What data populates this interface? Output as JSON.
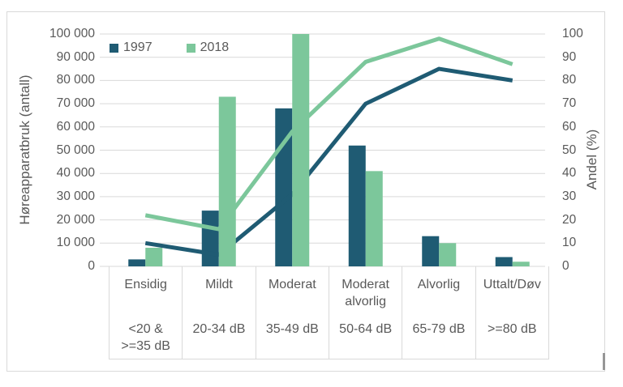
{
  "chart_data": {
    "type": "combo-bar-line",
    "title": "",
    "legend_position": "top-left-inside",
    "grid": true,
    "grid_color": "#d9d9d9",
    "text_color": "#595959",
    "left_axis": {
      "label": "Høreapparatbruk (antall)",
      "min": 0,
      "max": 100000,
      "tick_labels": [
        "100 000",
        "90 000",
        "80 000",
        "70 000",
        "60 000",
        "50 000",
        "40 000",
        "30 000",
        "20 000",
        "10 000",
        "0"
      ]
    },
    "right_axis": {
      "label": "Andel (%)",
      "min": 0,
      "max": 100,
      "tick_labels": [
        "100",
        "90",
        "80",
        "70",
        "60",
        "50",
        "40",
        "30",
        "20",
        "10",
        "0"
      ]
    },
    "categories": [
      {
        "name": "Ensidig",
        "range_lines": [
          "<20 &",
          ">=35 dB"
        ]
      },
      {
        "name": "Mildt",
        "range_lines": [
          "20-34 dB"
        ]
      },
      {
        "name": "Moderat",
        "range_lines": [
          "35-49 dB"
        ]
      },
      {
        "name": "Moderat alvorlig",
        "range_lines": [
          "50-64 dB"
        ]
      },
      {
        "name": "Alvorlig",
        "range_lines": [
          "65-79 dB"
        ]
      },
      {
        "name": "Uttalt/Døv",
        "range_lines": [
          ">=80 dB"
        ]
      }
    ],
    "bar_series": [
      {
        "name": "1997",
        "color": "#1f5b73",
        "values": [
          3000,
          24000,
          68000,
          52000,
          13000,
          4000
        ]
      },
      {
        "name": "2018",
        "color": "#7cc79b",
        "values": [
          8000,
          73000,
          100000,
          41000,
          10000,
          2000
        ]
      }
    ],
    "line_series": [
      {
        "name": "1997",
        "color": "#1f5b73",
        "values_percent": [
          10,
          5,
          31,
          70,
          85,
          80
        ]
      },
      {
        "name": "2018",
        "color": "#7cc79b",
        "values_percent": [
          22,
          16,
          58,
          88,
          98,
          87
        ]
      }
    ],
    "legend": [
      {
        "label": "1997"
      },
      {
        "label": "2018"
      }
    ]
  }
}
